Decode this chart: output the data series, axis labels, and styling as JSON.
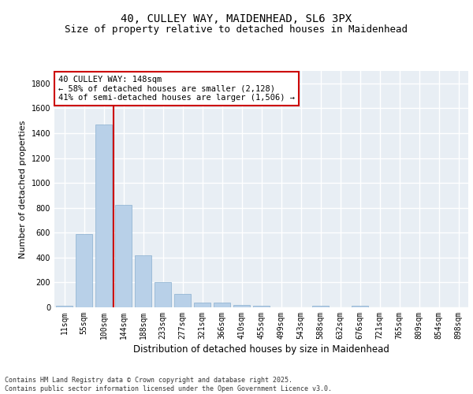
{
  "title1": "40, CULLEY WAY, MAIDENHEAD, SL6 3PX",
  "title2": "Size of property relative to detached houses in Maidenhead",
  "xlabel": "Distribution of detached houses by size in Maidenhead",
  "ylabel": "Number of detached properties",
  "categories": [
    "11sqm",
    "55sqm",
    "100sqm",
    "144sqm",
    "188sqm",
    "233sqm",
    "277sqm",
    "321sqm",
    "366sqm",
    "410sqm",
    "455sqm",
    "499sqm",
    "543sqm",
    "588sqm",
    "632sqm",
    "676sqm",
    "721sqm",
    "765sqm",
    "809sqm",
    "854sqm",
    "898sqm"
  ],
  "values": [
    15,
    590,
    1470,
    825,
    415,
    200,
    105,
    40,
    35,
    22,
    10,
    0,
    0,
    15,
    0,
    12,
    0,
    0,
    0,
    0,
    0
  ],
  "bar_color": "#b8d0e8",
  "bar_edge_color": "#8ab0d0",
  "vline_color": "#cc0000",
  "annotation_text": "40 CULLEY WAY: 148sqm\n← 58% of detached houses are smaller (2,128)\n41% of semi-detached houses are larger (1,506) →",
  "annotation_box_color": "#ffffff",
  "annotation_box_edge": "#cc0000",
  "ylim": [
    0,
    1900
  ],
  "yticks": [
    0,
    200,
    400,
    600,
    800,
    1000,
    1200,
    1400,
    1600,
    1800
  ],
  "background_color": "#e8eef4",
  "grid_color": "#ffffff",
  "footer_text": "Contains HM Land Registry data © Crown copyright and database right 2025.\nContains public sector information licensed under the Open Government Licence v3.0.",
  "title_fontsize": 10,
  "subtitle_fontsize": 9,
  "annot_fontsize": 7.5,
  "ylabel_fontsize": 8,
  "xlabel_fontsize": 8.5,
  "tick_fontsize": 7
}
